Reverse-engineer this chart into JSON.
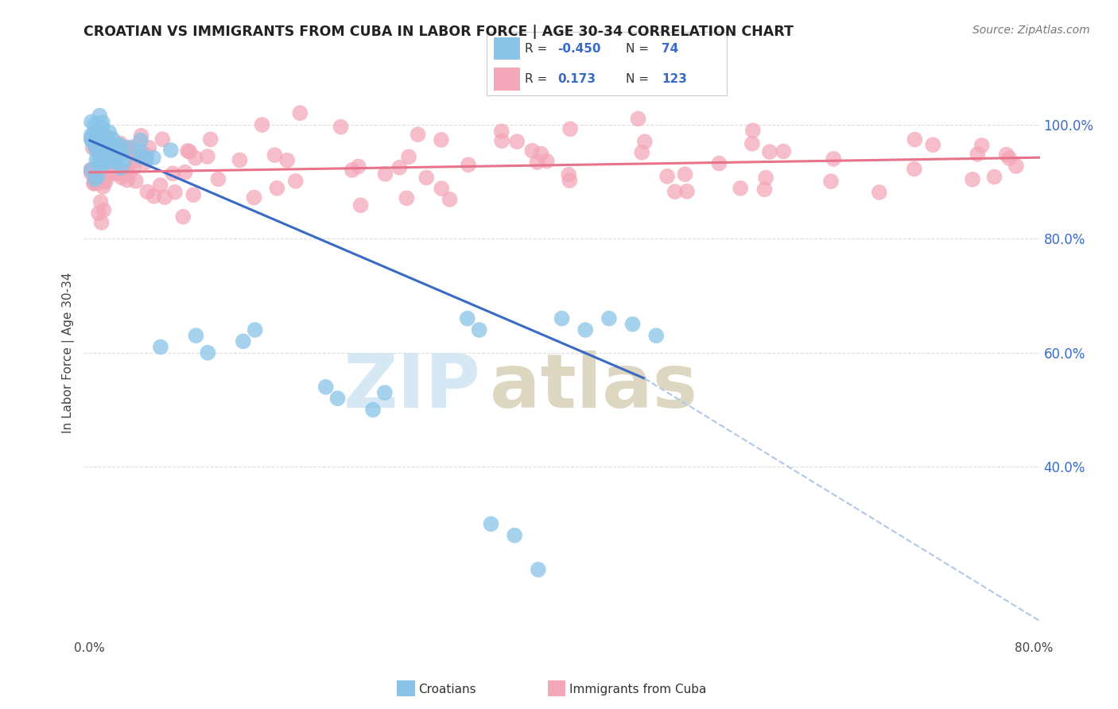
{
  "title": "CROATIAN VS IMMIGRANTS FROM CUBA IN LABOR FORCE | AGE 30-34 CORRELATION CHART",
  "source": "Source: ZipAtlas.com",
  "ylabel": "In Labor Force | Age 30-34",
  "ytick_values": [
    0.4,
    0.6,
    0.8,
    1.0
  ],
  "ytick_labels": [
    "40.0%",
    "60.0%",
    "80.0%",
    "100.0%"
  ],
  "xtick_values": [
    0.0,
    0.8
  ],
  "xtick_labels": [
    "0.0%",
    "80.0%"
  ],
  "legend_r_n": [
    {
      "R": "-0.450",
      "N": "74",
      "swatch_color": "#89c4e8"
    },
    {
      "R": "0.173",
      "N": "123",
      "swatch_color": "#f4a7b9"
    }
  ],
  "bottom_legend": [
    {
      "label": "Croatians",
      "color": "#89c4e8"
    },
    {
      "label": "Immigrants from Cuba",
      "color": "#f4a7b9"
    }
  ],
  "blue_scatter_color": "#89c4e8",
  "pink_scatter_color": "#f4a7b9",
  "blue_line_color": "#3a6bc4",
  "pink_line_color": "#e8728a",
  "dashed_line_color": "#b0c8e8",
  "watermark_zip_color": "#d0e4f4",
  "watermark_atlas_color": "#d8d0b8",
  "xlim": [
    -0.005,
    0.805
  ],
  "ylim": [
    0.1,
    1.1
  ],
  "grid_color": "#dddddd",
  "background_color": "#ffffff"
}
